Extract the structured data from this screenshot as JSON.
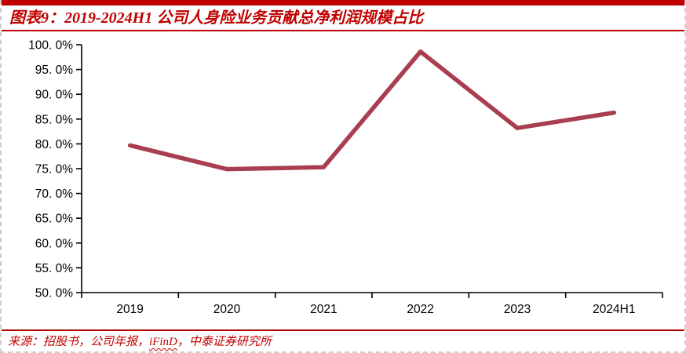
{
  "header": {
    "title": "图表9：2019-2024H1 公司人身险业务贡献总净利润规模占比"
  },
  "source": {
    "prefix": "来源：招股书，公司年报，",
    "highlight": "iFinD",
    "suffix": "，中泰证券研究所"
  },
  "colors": {
    "accent_red": "#C00000",
    "divider_red": "#B00000",
    "line_red": "#A93E50",
    "axis_black": "#000000"
  },
  "chart_data": {
    "type": "line",
    "title": "2019-2024H1 公司人身险业务贡献总净利润规模占比",
    "categories": [
      "2019",
      "2020",
      "2021",
      "2022",
      "2023",
      "2024H1"
    ],
    "values": [
      79.7,
      74.9,
      75.3,
      98.6,
      83.2,
      86.3
    ],
    "unit": "%",
    "xlabel": "",
    "ylabel": "",
    "ylim": [
      50,
      100
    ],
    "ytick_step": 5,
    "ytick_labels": [
      "50. 0%",
      "55. 0%",
      "60. 0%",
      "65. 0%",
      "70. 0%",
      "75. 0%",
      "80. 0%",
      "85. 0%",
      "90. 0%",
      "95. 0%",
      "100. 0%"
    ],
    "grid": false,
    "legend": null,
    "line_color": "#A93E50"
  }
}
